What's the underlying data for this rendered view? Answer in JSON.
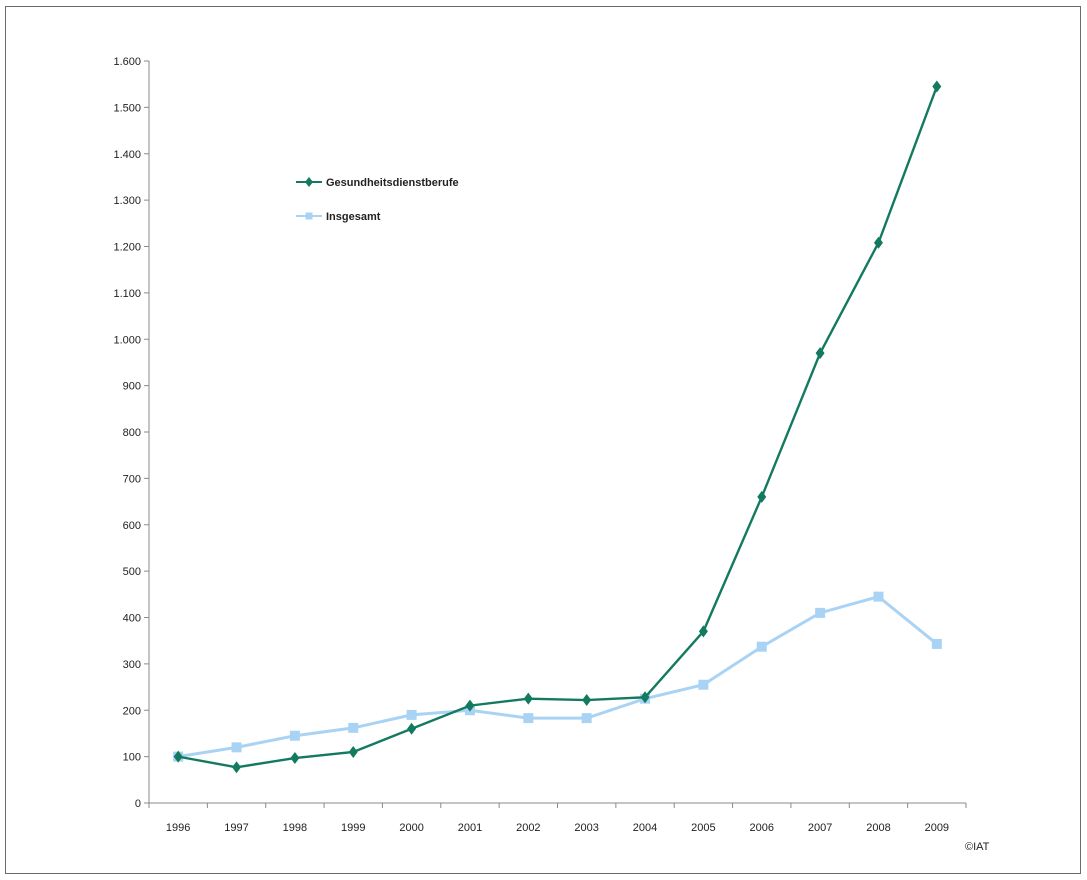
{
  "chart_data": {
    "type": "line",
    "title": "",
    "xlabel": "",
    "ylabel": "",
    "x": [
      "1996",
      "1997",
      "1998",
      "1999",
      "2000",
      "2001",
      "2002",
      "2003",
      "2004",
      "2005",
      "2006",
      "2007",
      "2008",
      "2009"
    ],
    "ylim": [
      0,
      1600
    ],
    "yticks": [
      0,
      100,
      200,
      300,
      400,
      500,
      600,
      700,
      800,
      900,
      1000,
      1100,
      1200,
      1300,
      1400,
      1500,
      1600
    ],
    "ytick_labels": [
      "0",
      "100",
      "200",
      "300",
      "400",
      "500",
      "600",
      "700",
      "800",
      "900",
      "1.000",
      "1.100",
      "1.200",
      "1.300",
      "1.400",
      "1.500",
      "1.600"
    ],
    "grid": false,
    "legend_position": "top-left",
    "series": [
      {
        "name": "Gesundheitsdienstberufe",
        "color": "#137a60",
        "marker": "diamond",
        "values": [
          100,
          77,
          97,
          110,
          160,
          210,
          225,
          222,
          228,
          370,
          660,
          970,
          1208,
          1545
        ]
      },
      {
        "name": "Insgesamt",
        "color": "#a9d3f5",
        "marker": "square",
        "values": [
          100,
          120,
          145,
          162,
          190,
          200,
          183,
          183,
          225,
          255,
          337,
          410,
          445,
          343
        ]
      }
    ]
  },
  "credit": "©IAT"
}
